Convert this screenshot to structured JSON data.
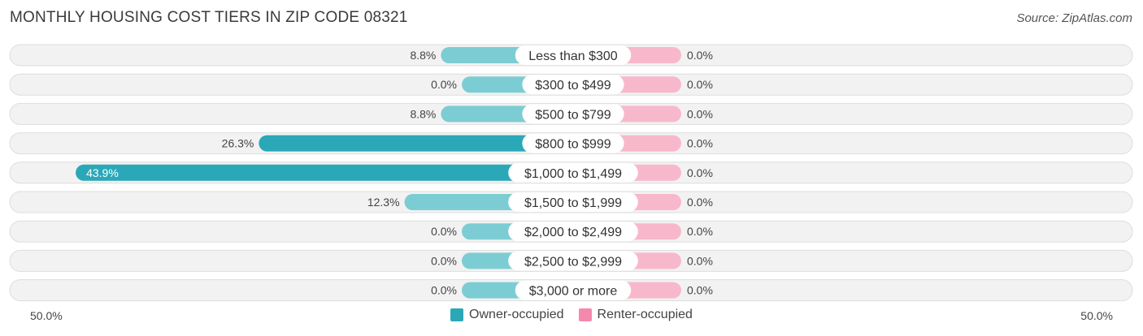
{
  "title": "MONTHLY HOUSING COST TIERS IN ZIP CODE 08321",
  "source": "Source: ZipAtlas.com",
  "colors": {
    "owner": "#2aa8b8",
    "owner_light": "#7ccdd3",
    "renter": "#f589ad",
    "renter_light": "#f8b8cc",
    "row_bg": "#efefef"
  },
  "axis": {
    "left_label": "50.0%",
    "right_label": "50.0%"
  },
  "legend": {
    "owner": "Owner-occupied",
    "renter": "Renter-occupied"
  },
  "chart_data": {
    "type": "bar",
    "orientation": "horizontal-diverging",
    "title": "MONTHLY HOUSING COST TIERS IN ZIP CODE 08321",
    "categories": [
      "Less than $300",
      "$300 to $499",
      "$500 to $799",
      "$800 to $999",
      "$1,000 to $1,499",
      "$1,500 to $1,999",
      "$2,000 to $2,499",
      "$2,500 to $2,999",
      "$3,000 or more"
    ],
    "series": [
      {
        "name": "Owner-occupied",
        "values": [
          8.8,
          0.0,
          8.8,
          26.3,
          43.9,
          12.3,
          0.0,
          0.0,
          0.0
        ],
        "labels": [
          "8.8%",
          "0.0%",
          "8.8%",
          "26.3%",
          "43.9%",
          "12.3%",
          "0.0%",
          "0.0%",
          "0.0%"
        ]
      },
      {
        "name": "Renter-occupied",
        "values": [
          0.0,
          0.0,
          0.0,
          0.0,
          0.0,
          0.0,
          0.0,
          0.0,
          0.0
        ],
        "labels": [
          "0.0%",
          "0.0%",
          "0.0%",
          "0.0%",
          "0.0%",
          "0.0%",
          "0.0%",
          "0.0%",
          "0.0%"
        ]
      }
    ],
    "xlim": [
      -50,
      50
    ]
  }
}
